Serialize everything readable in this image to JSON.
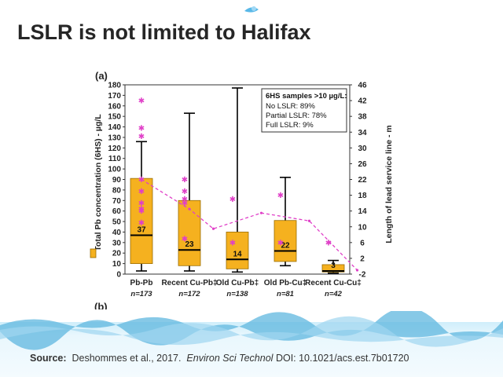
{
  "slide": {
    "title": "LSLR is not limited to Halifax",
    "source_label": "Source:",
    "source_authors": "Deshommes  et al., 2017.",
    "source_journal": "Environ Sci Technol",
    "source_doi": "DOI: 10.1021/acs.est.7b01720"
  },
  "colors": {
    "box_fill": "#f5b11f",
    "box_stroke": "#9a6c00",
    "median": "#000000",
    "trend": "#e040c8",
    "title": "#262626"
  },
  "chart_data": {
    "type": "box",
    "panel_label": "(a)",
    "next_panel_label": "(b)",
    "ylabel": "Total Pb concentration (6HS) - µg/L",
    "y2label": "Length of lead service line - m",
    "ylim": [
      0,
      180
    ],
    "y2lim": [
      -2,
      46
    ],
    "yticks": [
      0,
      10,
      20,
      30,
      40,
      50,
      60,
      70,
      80,
      90,
      100,
      110,
      120,
      130,
      140,
      150,
      160,
      170,
      180
    ],
    "y2ticks": [
      -2,
      2,
      6,
      10,
      14,
      18,
      22,
      26,
      30,
      34,
      38,
      42,
      46
    ],
    "categories": [
      "Pb-Pb",
      "Recent Cu-Pb‡",
      "Old Cu-Pb‡",
      "Old Pb-Cu‡",
      "Recent Cu-Cu‡"
    ],
    "n_labels": [
      "n=173",
      "n=172",
      "n=138",
      "n=81",
      "n=42"
    ],
    "boxes": [
      {
        "whisker_low": 3,
        "q1": 10,
        "median": 37,
        "q3": 91,
        "whisker_high": 126,
        "median_label": "37"
      },
      {
        "whisker_low": 3,
        "q1": 8,
        "median": 23,
        "q3": 70,
        "whisker_high": 153,
        "median_label": "23"
      },
      {
        "whisker_low": 2,
        "q1": 5,
        "median": 14,
        "q3": 40,
        "whisker_high": 177,
        "median_label": "14"
      },
      {
        "whisker_low": 8,
        "q1": 12,
        "median": 22,
        "q3": 51,
        "whisker_high": 92,
        "median_label": "22"
      },
      {
        "whisker_low": 1,
        "q1": 2,
        "median": 3,
        "q3": 9,
        "whisker_high": 13,
        "median_label": "3"
      }
    ],
    "outliers_m": [
      {
        "category": 1,
        "values": [
          42,
          35,
          33,
          22,
          19,
          16,
          14.5,
          14,
          11
        ]
      },
      {
        "category": 1.9,
        "values": [
          22,
          19,
          17,
          16,
          7
        ]
      },
      {
        "category": 2.9,
        "values": [
          17,
          6
        ]
      },
      {
        "category": 3.9,
        "values": [
          18,
          6
        ]
      },
      {
        "category": 4.9,
        "values": [
          6
        ]
      }
    ],
    "trend_m": [
      {
        "category": 1,
        "value": 22
      },
      {
        "category": 2,
        "value": 14.5
      },
      {
        "category": 2.5,
        "value": 9.5
      },
      {
        "category": 3.5,
        "value": 13.5
      },
      {
        "category": 4.5,
        "value": 11.5
      },
      {
        "category": 5.5,
        "value": -1
      }
    ],
    "legend": {
      "box_title": "6HS samples >10 µg/L:",
      "lines": [
        "No LSLR: 89%",
        "Partial LSLR: 78%",
        "Full LSLR: 9%"
      ]
    }
  }
}
